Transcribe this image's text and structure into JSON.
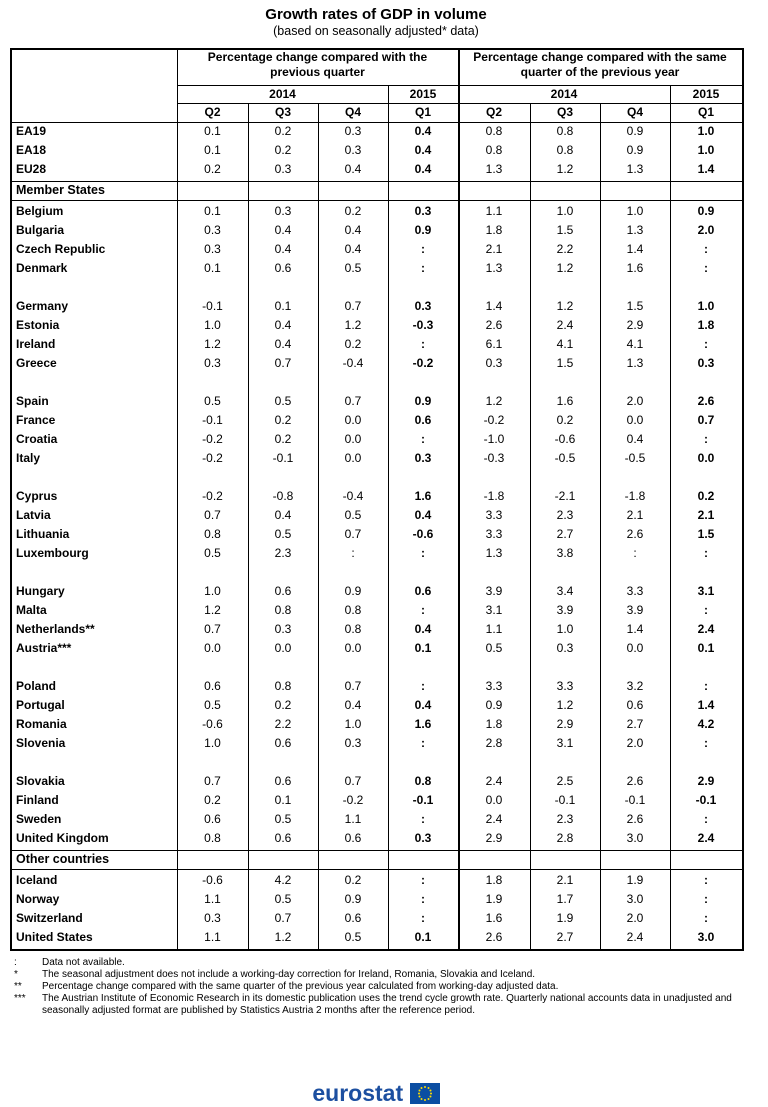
{
  "header": {
    "title": "Growth rates of GDP in volume",
    "subtitle": "(based on seasonally adjusted* data)"
  },
  "table": {
    "group_headers": [
      "Percentage change compared with the previous quarter",
      "Percentage change compared with the same quarter of the previous year"
    ],
    "years": [
      "2014",
      "2015",
      "2014",
      "2015"
    ],
    "quarters": [
      "Q2",
      "Q3",
      "Q4",
      "Q1",
      "Q2",
      "Q3",
      "Q4",
      "Q1"
    ],
    "sections": [
      {
        "groups": [
          [
            {
              "country": "EA19",
              "values": [
                "0.1",
                "0.2",
                "0.3",
                "0.4",
                "0.8",
                "0.8",
                "0.9",
                "1.0"
              ]
            },
            {
              "country": "EA18",
              "values": [
                "0.1",
                "0.2",
                "0.3",
                "0.4",
                "0.8",
                "0.8",
                "0.9",
                "1.0"
              ]
            },
            {
              "country": "EU28",
              "values": [
                "0.2",
                "0.3",
                "0.4",
                "0.4",
                "1.3",
                "1.2",
                "1.3",
                "1.4"
              ]
            }
          ]
        ]
      },
      {
        "title": "Member States",
        "groups": [
          [
            {
              "country": "Belgium",
              "values": [
                "0.1",
                "0.3",
                "0.2",
                "0.3",
                "1.1",
                "1.0",
                "1.0",
                "0.9"
              ]
            },
            {
              "country": "Bulgaria",
              "values": [
                "0.3",
                "0.4",
                "0.4",
                "0.9",
                "1.8",
                "1.5",
                "1.3",
                "2.0"
              ]
            },
            {
              "country": "Czech Republic",
              "values": [
                "0.3",
                "0.4",
                "0.4",
                ":",
                "2.1",
                "2.2",
                "1.4",
                ":"
              ]
            },
            {
              "country": "Denmark",
              "values": [
                "0.1",
                "0.6",
                "0.5",
                ":",
                "1.3",
                "1.2",
                "1.6",
                ":"
              ]
            }
          ],
          [
            {
              "country": "Germany",
              "values": [
                "-0.1",
                "0.1",
                "0.7",
                "0.3",
                "1.4",
                "1.2",
                "1.5",
                "1.0"
              ]
            },
            {
              "country": "Estonia",
              "values": [
                "1.0",
                "0.4",
                "1.2",
                "-0.3",
                "2.6",
                "2.4",
                "2.9",
                "1.8"
              ]
            },
            {
              "country": "Ireland",
              "values": [
                "1.2",
                "0.4",
                "0.2",
                ":",
                "6.1",
                "4.1",
                "4.1",
                ":"
              ]
            },
            {
              "country": "Greece",
              "values": [
                "0.3",
                "0.7",
                "-0.4",
                "-0.2",
                "0.3",
                "1.5",
                "1.3",
                "0.3"
              ]
            }
          ],
          [
            {
              "country": "Spain",
              "values": [
                "0.5",
                "0.5",
                "0.7",
                "0.9",
                "1.2",
                "1.6",
                "2.0",
                "2.6"
              ]
            },
            {
              "country": "France",
              "values": [
                "-0.1",
                "0.2",
                "0.0",
                "0.6",
                "-0.2",
                "0.2",
                "0.0",
                "0.7"
              ]
            },
            {
              "country": "Croatia",
              "values": [
                "-0.2",
                "0.2",
                "0.0",
                ":",
                "-1.0",
                "-0.6",
                "0.4",
                ":"
              ]
            },
            {
              "country": "Italy",
              "values": [
                "-0.2",
                "-0.1",
                "0.0",
                "0.3",
                "-0.3",
                "-0.5",
                "-0.5",
                "0.0"
              ]
            }
          ],
          [
            {
              "country": "Cyprus",
              "values": [
                "-0.2",
                "-0.8",
                "-0.4",
                "1.6",
                "-1.8",
                "-2.1",
                "-1.8",
                "0.2"
              ]
            },
            {
              "country": "Latvia",
              "values": [
                "0.7",
                "0.4",
                "0.5",
                "0.4",
                "3.3",
                "2.3",
                "2.1",
                "2.1"
              ]
            },
            {
              "country": "Lithuania",
              "values": [
                "0.8",
                "0.5",
                "0.7",
                "-0.6",
                "3.3",
                "2.7",
                "2.6",
                "1.5"
              ]
            },
            {
              "country": "Luxembourg",
              "values": [
                "0.5",
                "2.3",
                ":",
                ":",
                "1.3",
                "3.8",
                ":",
                ":"
              ]
            }
          ],
          [
            {
              "country": "Hungary",
              "values": [
                "1.0",
                "0.6",
                "0.9",
                "0.6",
                "3.9",
                "3.4",
                "3.3",
                "3.1"
              ]
            },
            {
              "country": "Malta",
              "values": [
                "1.2",
                "0.8",
                "0.8",
                ":",
                "3.1",
                "3.9",
                "3.9",
                ":"
              ]
            },
            {
              "country": "Netherlands**",
              "values": [
                "0.7",
                "0.3",
                "0.8",
                "0.4",
                "1.1",
                "1.0",
                "1.4",
                "2.4"
              ]
            },
            {
              "country": "Austria***",
              "values": [
                "0.0",
                "0.0",
                "0.0",
                "0.1",
                "0.5",
                "0.3",
                "0.0",
                "0.1"
              ]
            }
          ],
          [
            {
              "country": "Poland",
              "values": [
                "0.6",
                "0.8",
                "0.7",
                ":",
                "3.3",
                "3.3",
                "3.2",
                ":"
              ]
            },
            {
              "country": "Portugal",
              "values": [
                "0.5",
                "0.2",
                "0.4",
                "0.4",
                "0.9",
                "1.2",
                "0.6",
                "1.4"
              ]
            },
            {
              "country": "Romania",
              "values": [
                "-0.6",
                "2.2",
                "1.0",
                "1.6",
                "1.8",
                "2.9",
                "2.7",
                "4.2"
              ]
            },
            {
              "country": "Slovenia",
              "values": [
                "1.0",
                "0.6",
                "0.3",
                ":",
                "2.8",
                "3.1",
                "2.0",
                ":"
              ]
            }
          ],
          [
            {
              "country": "Slovakia",
              "values": [
                "0.7",
                "0.6",
                "0.7",
                "0.8",
                "2.4",
                "2.5",
                "2.6",
                "2.9"
              ]
            },
            {
              "country": "Finland",
              "values": [
                "0.2",
                "0.1",
                "-0.2",
                "-0.1",
                "0.0",
                "-0.1",
                "-0.1",
                "-0.1"
              ]
            },
            {
              "country": "Sweden",
              "values": [
                "0.6",
                "0.5",
                "1.1",
                ":",
                "2.4",
                "2.3",
                "2.6",
                ":"
              ]
            },
            {
              "country": "United Kingdom",
              "values": [
                "0.8",
                "0.6",
                "0.6",
                "0.3",
                "2.9",
                "2.8",
                "3.0",
                "2.4"
              ]
            }
          ]
        ]
      },
      {
        "title": "Other countries",
        "groups": [
          [
            {
              "country": "Iceland",
              "values": [
                "-0.6",
                "4.2",
                "0.2",
                ":",
                "1.8",
                "2.1",
                "1.9",
                ":"
              ]
            },
            {
              "country": "Norway",
              "values": [
                "1.1",
                "0.5",
                "0.9",
                ":",
                "1.9",
                "1.7",
                "3.0",
                ":"
              ]
            },
            {
              "country": "Switzerland",
              "values": [
                "0.3",
                "0.7",
                "0.6",
                ":",
                "1.6",
                "1.9",
                "2.0",
                ":"
              ]
            },
            {
              "country": "United States",
              "values": [
                "1.1",
                "1.2",
                "0.5",
                "0.1",
                "2.6",
                "2.7",
                "2.4",
                "3.0"
              ]
            }
          ]
        ]
      }
    ]
  },
  "notes": [
    {
      "symbol": ":",
      "text": "Data not available."
    },
    {
      "symbol": "*",
      "text": "The seasonal adjustment does not include a working-day correction for Ireland, Romania, Slovakia and Iceland."
    },
    {
      "symbol": "**",
      "text": "Percentage change compared with the same quarter of the previous year calculated from working-day adjusted data."
    },
    {
      "symbol": "***",
      "text": "The Austrian Institute of Economic Research in its domestic publication uses the trend cycle growth rate. Quarterly national accounts data in unadjusted and seasonally adjusted format are published by Statistics Austria 2 months after the reference period."
    }
  ],
  "footer": {
    "logo": "eurostat"
  }
}
